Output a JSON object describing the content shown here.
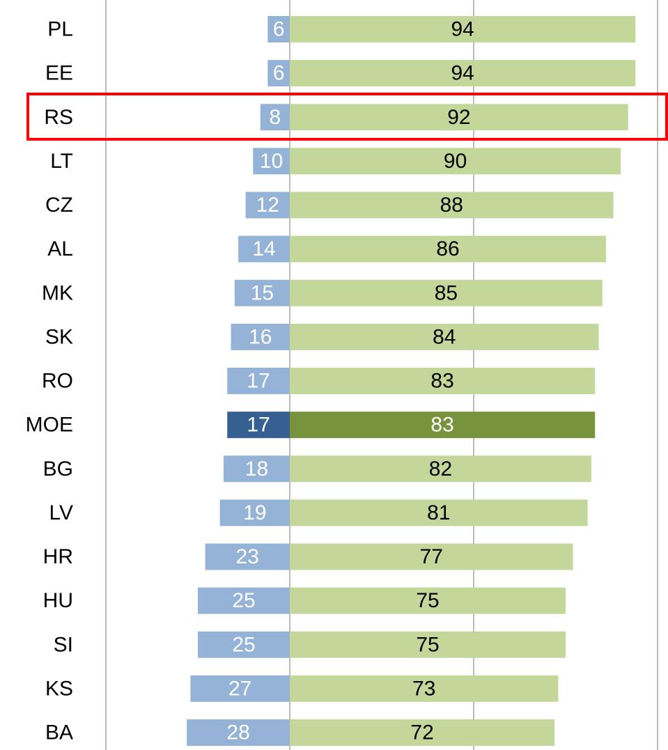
{
  "chart_data": {
    "type": "diverging-bar",
    "categories": [
      "PL",
      "EE",
      "RS",
      "LT",
      "CZ",
      "AL",
      "MK",
      "SK",
      "RO",
      "MOE",
      "BG",
      "LV",
      "HR",
      "HU",
      "SI",
      "KS",
      "BA"
    ],
    "series": [
      {
        "color": "#95b3d7",
        "colors": [
          "#95b3d7",
          "#95b3d7",
          "#95b3d7",
          "#95b3d7",
          "#95b3d7",
          "#95b3d7",
          "#95b3d7",
          "#95b3d7",
          "#95b3d7",
          "#376092",
          "#95b3d7",
          "#95b3d7",
          "#95b3d7",
          "#95b3d7",
          "#95b3d7",
          "#95b3d7",
          "#95b3d7"
        ],
        "direction": "left",
        "values": [
          6,
          6,
          8,
          10,
          12,
          14,
          15,
          16,
          17,
          17,
          18,
          19,
          23,
          25,
          25,
          27,
          28
        ]
      },
      {
        "color": "#c4d79b",
        "colors": [
          "#c4d79b",
          "#c4d79b",
          "#c4d79b",
          "#c4d79b",
          "#c4d79b",
          "#c4d79b",
          "#c4d79b",
          "#c4d79b",
          "#c4d79b",
          "#77933c",
          "#c4d79b",
          "#c4d79b",
          "#c4d79b",
          "#c4d79b",
          "#c4d79b",
          "#c4d79b",
          "#c4d79b"
        ],
        "direction": "right",
        "values": [
          94,
          94,
          92,
          90,
          88,
          86,
          85,
          84,
          83,
          83,
          82,
          81,
          77,
          75,
          75,
          73,
          72
        ]
      }
    ],
    "xlim": [
      -50,
      100
    ],
    "xticks": [
      -50,
      0,
      50,
      100
    ],
    "grid": true
  }
}
